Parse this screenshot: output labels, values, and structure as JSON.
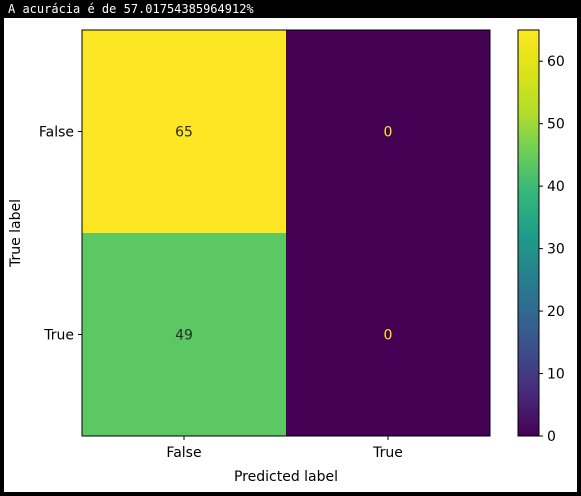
{
  "output": {
    "text": "A acurácia é de 57.01754385964912%"
  },
  "colors": {
    "max_cell": "#fde725",
    "mid_cell": "#5cc863",
    "min_cell": "#440154",
    "text_light": "#fde725",
    "text_dark": "#2b2b2b",
    "axes": "#000000"
  },
  "chart_data": {
    "type": "heatmap",
    "title": "",
    "xlabel": "Predicted label",
    "ylabel": "True label",
    "x_categories": [
      "False",
      "True"
    ],
    "y_categories": [
      "False",
      "True"
    ],
    "values": [
      [
        65,
        0
      ],
      [
        49,
        0
      ]
    ],
    "colormap": "viridis",
    "vmin": 0,
    "vmax": 65,
    "colorbar_ticks": [
      "0",
      "10",
      "20",
      "30",
      "40",
      "50",
      "60"
    ]
  }
}
